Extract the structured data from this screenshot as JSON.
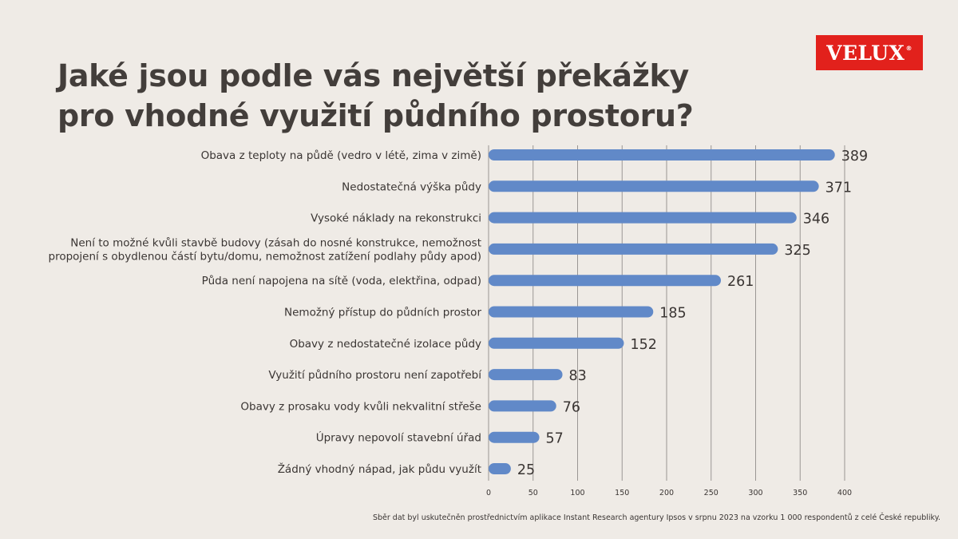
{
  "header": {
    "title_line1": "Jaké jsou podle vás největší překážky",
    "title_line2": "pro vhodné využití půdního prostoru?",
    "logo_text": "VELUX",
    "logo_mark": "®"
  },
  "footnote": "Sběr dat byl uskutečněn prostřednictvím aplikace Instant Research agentury Ipsos v srpnu 2023 na vzorku 1 000 respondentů z celé České republiky.",
  "colors": {
    "background": "#efebe6",
    "bar": "#6189c8",
    "logo": "#e2211c",
    "text": "#3a3533",
    "grid": "#9a9693"
  },
  "chart_data": {
    "type": "bar",
    "orientation": "horizontal",
    "title": "Jaké jsou podle vás největší překážky pro vhodné využití půdního prostoru?",
    "categories": [
      [
        "Obava z teploty na půdě (vedro v létě, zima v zimě)"
      ],
      [
        "Nedostatečná výška půdy"
      ],
      [
        "Vysoké náklady na rekonstrukci"
      ],
      [
        "Není to možné kvůli stavbě budovy (zásah do nosné konstrukce, nemožnost",
        "propojení s obydlenou částí bytu/domu, nemožnost zatížení podlahy půdy apod)"
      ],
      [
        "Půda není napojena na sítě (voda, elektřina, odpad)"
      ],
      [
        "Nemožný přístup do půdních prostor"
      ],
      [
        "Obavy z nedostatečné izolace půdy"
      ],
      [
        "Využití půdního prostoru není zapotřebí"
      ],
      [
        "Obavy z prosaku vody kvůli nekvalitní střeše"
      ],
      [
        "Úpravy nepovolí stavební úřad"
      ],
      [
        "Žádný vhodný nápad, jak půdu využít"
      ]
    ],
    "values": [
      389,
      371,
      346,
      325,
      261,
      185,
      152,
      83,
      76,
      57,
      25
    ],
    "xlim": [
      0,
      400
    ],
    "xticks": [
      0,
      50,
      100,
      150,
      200,
      250,
      300,
      350,
      400
    ],
    "grid": true,
    "xlabel": "",
    "ylabel": ""
  }
}
